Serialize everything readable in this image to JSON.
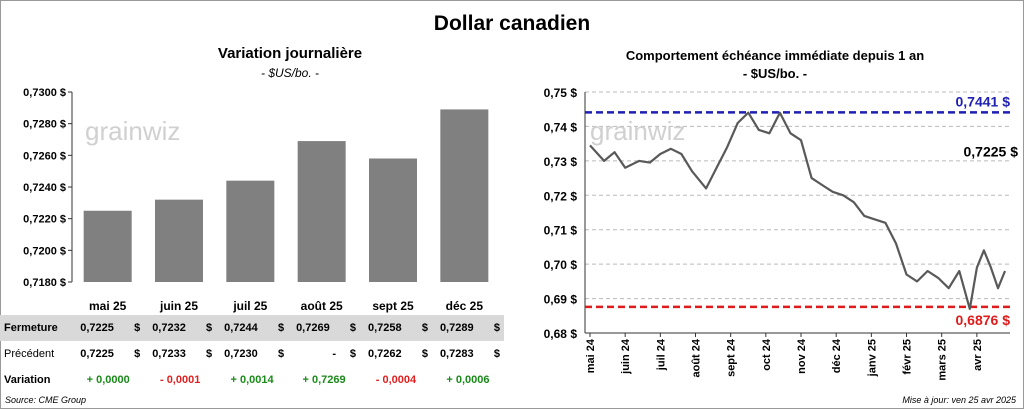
{
  "title": "Dollar canadien",
  "left": {
    "title": "Variation  journalière",
    "subtitle": "- $US/bo. -"
  },
  "right": {
    "title": "Comportement échéance immédiate depuis 1 an",
    "subtitle": "- $US/bo. -"
  },
  "watermark": "grainwiz",
  "table": {
    "rows": [
      {
        "label": "Fermeture",
        "values": [
          "0,7225",
          "0,7232",
          "0,7244",
          "0,7269",
          "0,7258",
          "0,7289"
        ],
        "unit": "$"
      },
      {
        "label": "Précédent",
        "values": [
          "0,7225",
          "0,7233",
          "0,7230",
          "-",
          "0,7262",
          "0,7283"
        ],
        "unit": "$"
      },
      {
        "label": "Variation",
        "values": [
          "+ 0,0000",
          "- 0,0001",
          "+ 0,0014",
          "+ 0,7269",
          "- 0,0004",
          "+ 0,0006"
        ]
      }
    ]
  },
  "source": "Source: CME Group",
  "updated": "Mise à jour: ven 25 avr 2025",
  "colors": {
    "bar": "#808080",
    "line": "#595959",
    "high": "#1f1fb4",
    "low": "#e01b1b",
    "pos": "#1a8a1a",
    "neg": "#e02020"
  },
  "chart_data": [
    {
      "type": "bar",
      "title": "Variation  journalière",
      "subtitle": "- $US/bo. -",
      "categories": [
        "mai 25",
        "juin 25",
        "juil 25",
        "août 25",
        "sept 25",
        "déc 25"
      ],
      "values": [
        0.7225,
        0.7232,
        0.7244,
        0.7269,
        0.7258,
        0.7289
      ],
      "ylim": [
        0.718,
        0.73
      ],
      "yticks": [
        "0,7180 $",
        "0,7200 $",
        "0,7220 $",
        "0,7240 $",
        "0,7260 $",
        "0,7280 $",
        "0,7300 $"
      ],
      "grid": false
    },
    {
      "type": "line",
      "title": "Comportement échéance immédiate depuis 1 an",
      "subtitle": "- $US/bo. -",
      "ylim": [
        0.68,
        0.75
      ],
      "yticks": [
        "0,68 $",
        "0,69 $",
        "0,70 $",
        "0,71 $",
        "0,72 $",
        "0,73 $",
        "0,74 $",
        "0,75 $"
      ],
      "xticks": [
        "mai 24",
        "juin 24",
        "juil 24",
        "août 24",
        "sept 24",
        "oct 24",
        "nov 24",
        "déc 24",
        "janv 25",
        "févr 25",
        "mars 25",
        "avr 25"
      ],
      "x": [
        0,
        0.4,
        0.7,
        1.0,
        1.4,
        1.7,
        2.0,
        2.3,
        2.6,
        2.9,
        3.3,
        3.6,
        3.9,
        4.2,
        4.5,
        4.8,
        5.1,
        5.4,
        5.7,
        6.0,
        6.3,
        6.6,
        6.9,
        7.2,
        7.5,
        7.8,
        8.1,
        8.4,
        8.7,
        9.0,
        9.3,
        9.6,
        9.9,
        10.2,
        10.5,
        10.8,
        11.0,
        11.2,
        11.4,
        11.6,
        11.8
      ],
      "values": [
        0.7345,
        0.73,
        0.7325,
        0.728,
        0.73,
        0.7295,
        0.732,
        0.7335,
        0.732,
        0.727,
        0.722,
        0.728,
        0.734,
        0.741,
        0.744,
        0.739,
        0.738,
        0.744,
        0.738,
        0.736,
        0.725,
        0.723,
        0.721,
        0.72,
        0.718,
        0.714,
        0.713,
        0.712,
        0.706,
        0.697,
        0.695,
        0.698,
        0.696,
        0.693,
        0.698,
        0.687,
        0.699,
        0.704,
        0.699,
        0.693,
        0.698
      ],
      "reference_lines": [
        {
          "label": "0,7441 $",
          "value": 0.7441,
          "color": "#1f1fb4"
        },
        {
          "label": "0,6876 $",
          "value": 0.6876,
          "color": "#e01b1b"
        }
      ],
      "last_value_label": "0,7225 $",
      "grid": true
    }
  ]
}
